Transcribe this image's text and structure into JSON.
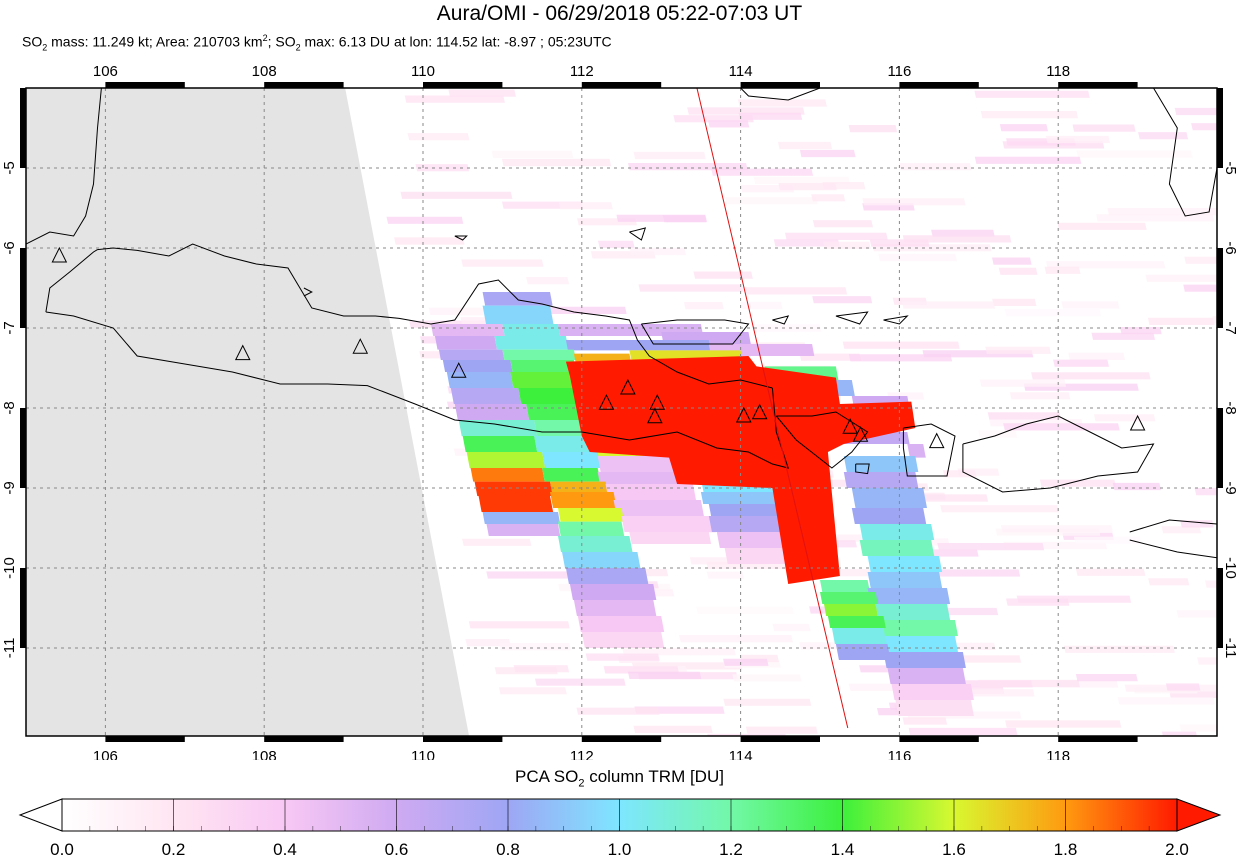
{
  "header": {
    "title": "Aura/OMI - 06/29/2018 05:22-07:03 UT",
    "subtitle": {
      "so2_mass_label": "SO",
      "so2_mass_value": " mass: 11.249 kt; Area: 210703 km",
      "area_sup": "2",
      "so2_max_label": "; SO",
      "so2_max_value": " max: 6.13 DU at lon: 114.52 lat: -8.97 ; 05:23UTC",
      "sub2": "2"
    }
  },
  "map": {
    "lon_ticks": [
      "106",
      "108",
      "110",
      "112",
      "114",
      "116",
      "118"
    ],
    "lat_ticks": [
      "-5",
      "-6",
      "-7",
      "-8",
      "-9",
      "-10",
      "-11"
    ],
    "lon_range": [
      105,
      120
    ],
    "lat_range": [
      -12.1,
      -4.0
    ],
    "volcanoes_lonlat": [
      [
        105.42,
        -6.1
      ],
      [
        107.73,
        -7.32
      ],
      [
        109.21,
        -7.24
      ],
      [
        110.45,
        -7.54
      ],
      [
        112.31,
        -7.94
      ],
      [
        112.58,
        -7.75
      ],
      [
        112.95,
        -7.94
      ],
      [
        112.92,
        -8.11
      ],
      [
        114.04,
        -8.1
      ],
      [
        114.24,
        -8.06
      ],
      [
        115.38,
        -8.24
      ],
      [
        115.51,
        -8.34
      ],
      [
        116.47,
        -8.42
      ],
      [
        119.0,
        -8.2
      ]
    ],
    "orbit_line_lonlat": [
      [
        113.45,
        -4.0
      ],
      [
        115.35,
        -12.0
      ]
    ],
    "colors": {
      "no_data": "#e4e4e4",
      "so2_max": "#ff1a00",
      "coast": "#000000",
      "grid": "#888888",
      "orbit": "#e01010"
    }
  },
  "colorbar": {
    "title_pre": "PCA SO",
    "title_sub": "2",
    "title_post": " column TRM [DU]",
    "ticks": [
      "0.0",
      "0.2",
      "0.4",
      "0.6",
      "0.8",
      "1.0",
      "1.2",
      "1.4",
      "1.6",
      "1.8",
      "2.0"
    ],
    "range": [
      0.0,
      2.0
    ]
  }
}
